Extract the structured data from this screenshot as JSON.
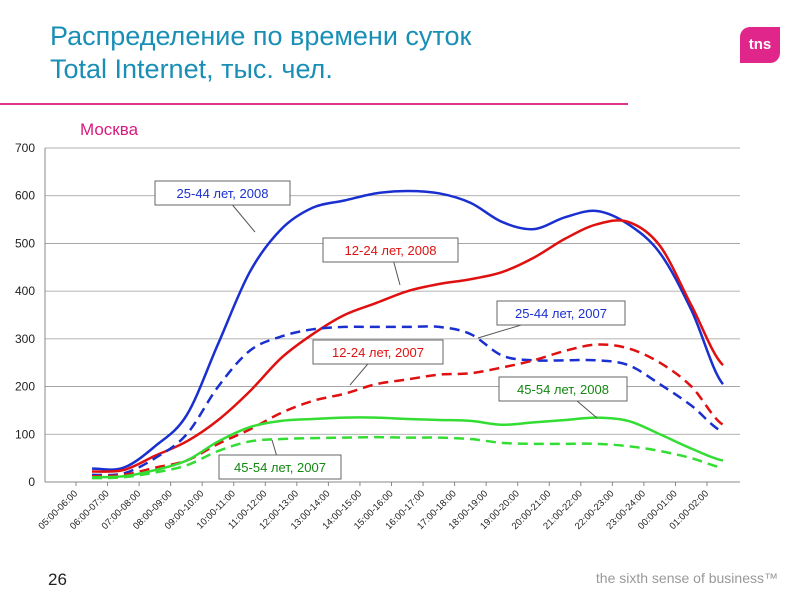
{
  "header": {
    "title_line1": "Распределение по времени суток",
    "title_line2": "Total Internet, тыс. чел.",
    "logo": "tns"
  },
  "footer": {
    "page": "26",
    "tagline": "the sixth sense of business™"
  },
  "chart_data": {
    "type": "line",
    "title": "Москва",
    "xlabel": "",
    "ylabel": "",
    "ylim": [
      0,
      700
    ],
    "yticks": [
      0,
      100,
      200,
      300,
      400,
      500,
      600,
      700
    ],
    "grid": true,
    "categories": [
      "05:00-06:00",
      "06:00-07:00",
      "07:00-08:00",
      "08:00-09:00",
      "09:00-10:00",
      "10:00-11:00",
      "11:00-12:00",
      "12:00-13:00",
      "13:00-14:00",
      "14:00-15:00",
      "15:00-16:00",
      "16:00-17:00",
      "17:00-18:00",
      "18:00-19:00",
      "19:00-20:00",
      "20:00-21:00",
      "21:00-22:00",
      "22:00-23:00",
      "23:00-24:00",
      "00:00-01:00",
      "01:00-02:00"
    ],
    "series": [
      {
        "name": "25-44 лет, 2008",
        "color": "#1a2fd0",
        "dash": false,
        "values": [
          28,
          30,
          75,
          140,
          290,
          440,
          530,
          575,
          590,
          605,
          610,
          605,
          585,
          545,
          530,
          555,
          568,
          540,
          480,
          360,
          205
        ]
      },
      {
        "name": "12-24 лет, 2008",
        "color": "#e01010",
        "dash": false,
        "values": [
          22,
          25,
          55,
          85,
          130,
          190,
          260,
          310,
          350,
          375,
          400,
          415,
          425,
          440,
          470,
          510,
          540,
          545,
          495,
          370,
          245
        ]
      },
      {
        "name": "25-44 лет, 2007",
        "color": "#1a2fd0",
        "dash": true,
        "values": [
          15,
          18,
          50,
          100,
          200,
          275,
          305,
          320,
          325,
          325,
          325,
          325,
          310,
          265,
          255,
          255,
          255,
          245,
          205,
          160,
          105
        ]
      },
      {
        "name": "12-24 лет, 2007",
        "color": "#e01010",
        "dash": true,
        "values": [
          12,
          15,
          30,
          45,
          80,
          110,
          145,
          170,
          185,
          205,
          215,
          225,
          228,
          240,
          255,
          275,
          288,
          280,
          250,
          200,
          120
        ]
      },
      {
        "name": "45-54 лет, 2008",
        "color": "#33dd33",
        "dash": false,
        "values": [
          10,
          12,
          25,
          45,
          85,
          115,
          128,
          132,
          135,
          135,
          132,
          130,
          128,
          120,
          125,
          130,
          135,
          128,
          100,
          70,
          45
        ]
      },
      {
        "name": "45-54 лет, 2007",
        "color": "#33dd33",
        "dash": true,
        "values": [
          8,
          10,
          20,
          35,
          65,
          85,
          90,
          92,
          93,
          94,
          93,
          93,
          90,
          82,
          80,
          80,
          80,
          75,
          65,
          50,
          30
        ]
      }
    ]
  }
}
